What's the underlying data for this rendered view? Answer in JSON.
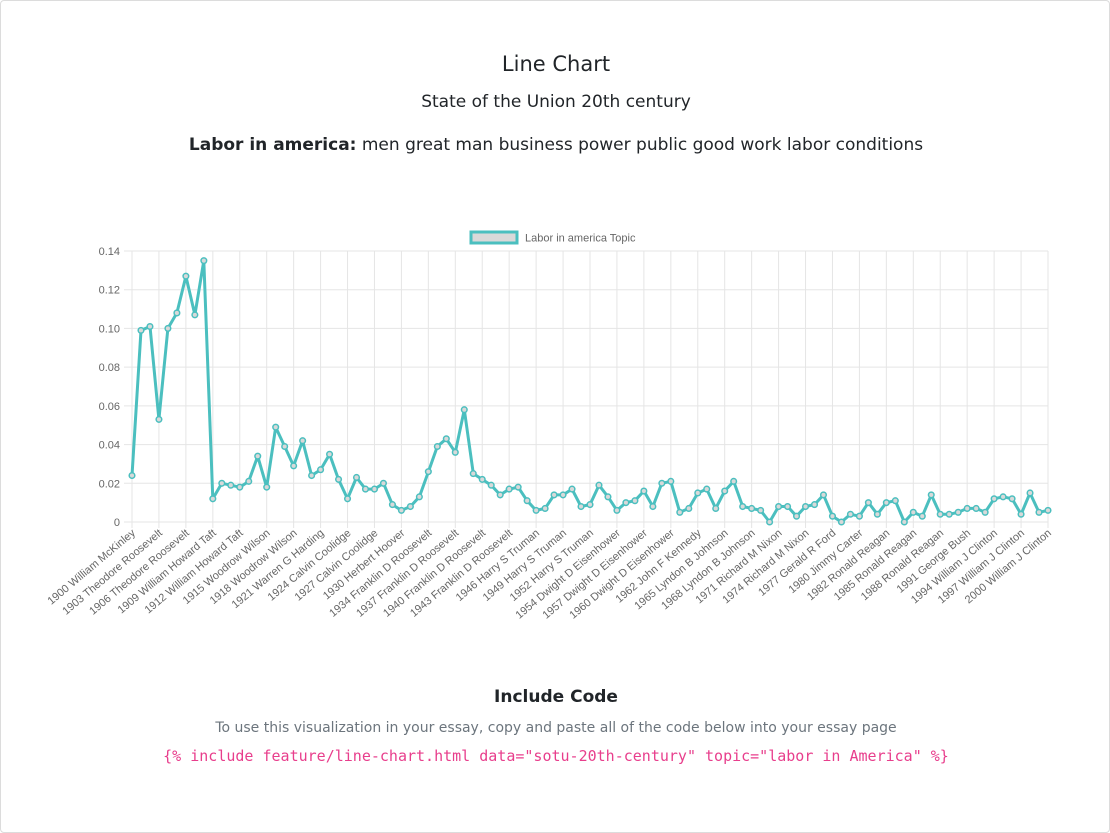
{
  "page": {
    "title": "Line Chart",
    "subtitle": "State of the Union 20th century",
    "topic_label": "Labor in america:",
    "topic_words": "men great man business power public good work labor conditions"
  },
  "include": {
    "heading": "Include Code",
    "instructions": "To use this visualization in your essay, copy and paste all of the code below into your essay page",
    "code": "{% include feature/line-chart.html data=\"sotu-20th-century\" topic=\"labor in America\" %}"
  },
  "colors": {
    "line": "#4bbfbf",
    "fill": "#d9d9d9",
    "grid": "#e5e5e5",
    "text": "#666666"
  },
  "chart_data": {
    "type": "line",
    "legend": "Labor in america Topic",
    "legend_position": "top",
    "grid": true,
    "ylim": [
      0,
      0.14
    ],
    "yticks": [
      "0",
      "0.02",
      "0.04",
      "0.06",
      "0.08",
      "0.10",
      "0.12",
      "0.14"
    ],
    "x_tick_labels": [
      "1900 William McKinley",
      "1903 Theodore Roosevelt",
      "1906 Theodore Roosevelt",
      "1909 William Howard Taft",
      "1912 William Howard Taft",
      "1915 Woodrow Wilson",
      "1918 Woodrow Wilson",
      "1921 Warren G Harding",
      "1924 Calvin Coolidge",
      "1927 Calvin Coolidge",
      "1930 Herbert Hoover",
      "1934 Franklin D Roosevelt",
      "1937 Franklin D Roosevelt",
      "1940 Franklin D Roosevelt",
      "1943 Franklin D Roosevelt",
      "1946 Harry S Truman",
      "1949 Harry S Truman",
      "1952 Harry S Truman",
      "1954 Dwight D Eisenhower",
      "1957 Dwight D Eisenhower",
      "1960 Dwight D Eisenhower",
      "1962 John F Kennedy",
      "1965 Lyndon B Johnson",
      "1968 Lyndon B Johnson",
      "1971 Richard M Nixon",
      "1974 Richard M Nixon",
      "1977 Gerald R Ford",
      "1980 Jimmy Carter",
      "1982 Ronald Reagan",
      "1985 Ronald Reagan",
      "1988 Ronald Reagan",
      "1991 George Bush",
      "1994 William J Clinton",
      "1997 William J Clinton",
      "2000 William J Clinton"
    ],
    "series": [
      {
        "name": "Labor in america Topic",
        "values": [
          0.024,
          0.099,
          0.101,
          0.053,
          0.1,
          0.108,
          0.127,
          0.107,
          0.135,
          0.012,
          0.02,
          0.019,
          0.018,
          0.021,
          0.034,
          0.018,
          0.049,
          0.039,
          0.029,
          0.042,
          0.024,
          0.027,
          0.035,
          0.022,
          0.012,
          0.023,
          0.017,
          0.017,
          0.02,
          0.009,
          0.006,
          0.008,
          0.013,
          0.026,
          0.039,
          0.043,
          0.036,
          0.058,
          0.025,
          0.022,
          0.019,
          0.014,
          0.017,
          0.018,
          0.011,
          0.006,
          0.007,
          0.014,
          0.014,
          0.017,
          0.008,
          0.009,
          0.019,
          0.013,
          0.006,
          0.01,
          0.011,
          0.016,
          0.008,
          0.02,
          0.021,
          0.005,
          0.007,
          0.015,
          0.017,
          0.007,
          0.016,
          0.021,
          0.008,
          0.007,
          0.006,
          0.0,
          0.008,
          0.008,
          0.003,
          0.008,
          0.009,
          0.014,
          0.003,
          0.0,
          0.004,
          0.003,
          0.01,
          0.004,
          0.01,
          0.011,
          0.0,
          0.005,
          0.003,
          0.014,
          0.004,
          0.004,
          0.005,
          0.007,
          0.007,
          0.005,
          0.012,
          0.013,
          0.012,
          0.004,
          0.015,
          0.005,
          0.006
        ]
      }
    ]
  }
}
